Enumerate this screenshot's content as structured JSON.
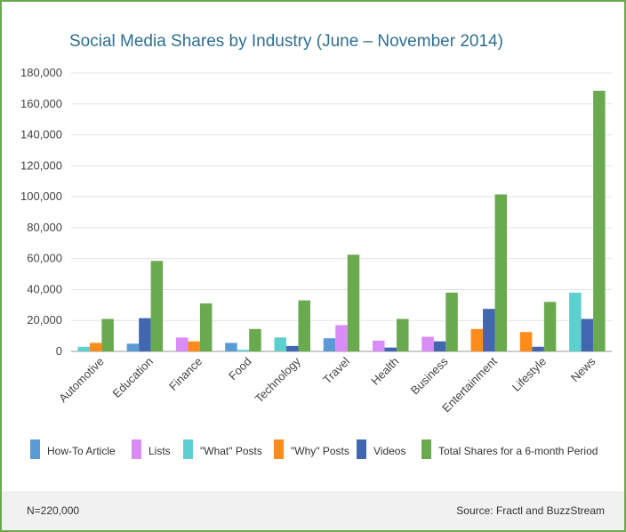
{
  "chart_data": {
    "type": "bar",
    "title": "Social Media Shares by Industry (June – November 2014)",
    "categories": [
      "Automotive",
      "Education",
      "Finance",
      "Food",
      "Technology",
      "Travel",
      "Health",
      "Business",
      "Entertainment",
      "Lifestyle",
      "News"
    ],
    "y_ticks": [
      "0",
      "20,000",
      "40,000",
      "60,000",
      "80,000",
      "100,000",
      "120,000",
      "140,000",
      "160,000",
      "180,000"
    ],
    "ylim": [
      0,
      180000
    ],
    "grid": true,
    "legend_position": "bottom",
    "series": [
      {
        "name": "How-To Article",
        "color": "#5b9bd5",
        "values": [
          0,
          5000,
          0,
          5500,
          0,
          8500,
          0,
          0,
          0,
          0,
          0
        ]
      },
      {
        "name": "Lists",
        "color": "#d98cf5",
        "values": [
          0,
          0,
          9000,
          0,
          0,
          17000,
          7000,
          9500,
          0,
          0,
          0
        ]
      },
      {
        "name": "\"What\" Posts",
        "color": "#5ccfcf",
        "values": [
          3000,
          0,
          0,
          1000,
          9000,
          0,
          0,
          0,
          0,
          0,
          38000
        ]
      },
      {
        "name": "\"Why\" Posts",
        "color": "#ff8c1a",
        "values": [
          5500,
          0,
          6500,
          0,
          0,
          0,
          0,
          0,
          14500,
          12500,
          0
        ]
      },
      {
        "name": "Videos",
        "color": "#4266b0",
        "values": [
          0,
          21500,
          0,
          0,
          3500,
          0,
          2500,
          6500,
          27500,
          3000,
          21000
        ]
      },
      {
        "name": "Total Shares for a 6-month Period",
        "color": "#6aaa4f",
        "values": [
          21000,
          58500,
          31000,
          14500,
          33000,
          62500,
          21000,
          38000,
          101500,
          32000,
          168500
        ]
      }
    ]
  },
  "footer": {
    "n_label": "N=220,000",
    "source": "Source: Fractl and BuzzStream"
  }
}
